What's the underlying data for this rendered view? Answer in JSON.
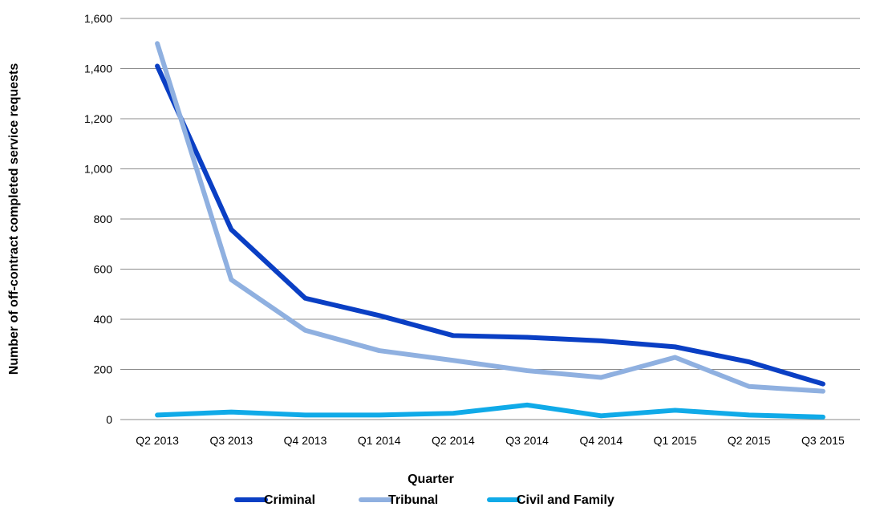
{
  "chart_data": {
    "type": "line",
    "title": "",
    "xlabel": "Quarter",
    "ylabel": "Number of off-contract completed service requests",
    "categories": [
      "Q2 2013",
      "Q3 2013",
      "Q4 2013",
      "Q1 2014",
      "Q2 2014",
      "Q3 2014",
      "Q4 2014",
      "Q1 2015",
      "Q2 2015",
      "Q3 2015"
    ],
    "ylim": [
      0,
      1600
    ],
    "yticks": [
      "0",
      "200",
      "400",
      "600",
      "800",
      "1,000",
      "1,200",
      "1,400",
      "1,600"
    ],
    "grid": true,
    "legend_position": "bottom",
    "series": [
      {
        "name": "Criminal",
        "color": "#0a3fc4",
        "values": [
          1410,
          758,
          484,
          415,
          335,
          328,
          314,
          290,
          230,
          142
        ]
      },
      {
        "name": "Tribunal",
        "color": "#8fb0e0",
        "values": [
          1500,
          558,
          356,
          275,
          236,
          195,
          168,
          248,
          132,
          113
        ]
      },
      {
        "name": "Civil and Family",
        "color": "#10aae8",
        "values": [
          18,
          30,
          18,
          18,
          25,
          58,
          15,
          37,
          18,
          10
        ]
      }
    ]
  }
}
